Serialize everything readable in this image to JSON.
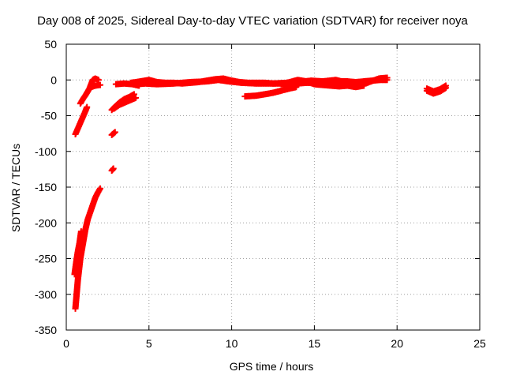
{
  "chart_data": {
    "type": "scatter",
    "title": "Day 008 of 2025, Sidereal Day-to-day VTEC variation (SDTVAR) for receiver noya",
    "xlabel": "GPS time / hours",
    "ylabel": "SDTVAR / TECUs",
    "xlim": [
      0,
      25
    ],
    "ylim": [
      -350,
      50
    ],
    "xticks": [
      "0",
      "5",
      "10",
      "15",
      "20",
      "25"
    ],
    "yticks": [
      "50",
      "0",
      "-50",
      "-100",
      "-150",
      "-200",
      "-250",
      "-300",
      "-350"
    ],
    "grid": true,
    "marker": "+",
    "color": "#ff0000",
    "series": [
      {
        "segments": [
          [
            [
              0.55,
              -320
            ],
            [
              0.7,
              -280
            ],
            [
              0.85,
              -250
            ],
            [
              1.0,
              -230
            ],
            [
              1.15,
              -210
            ],
            [
              1.3,
              -195
            ],
            [
              1.45,
              -185
            ],
            [
              1.6,
              -175
            ],
            [
              1.75,
              -165
            ],
            [
              1.9,
              -158
            ],
            [
              2.05,
              -152
            ]
          ],
          [
            [
              0.5,
              -272
            ],
            [
              0.6,
              -255
            ],
            [
              0.7,
              -240
            ],
            [
              0.8,
              -228
            ],
            [
              0.9,
              -212
            ]
          ],
          [
            [
              0.55,
              -76
            ],
            [
              0.7,
              -68
            ],
            [
              0.85,
              -60
            ],
            [
              1.0,
              -52
            ],
            [
              1.15,
              -44
            ],
            [
              1.25,
              -38
            ]
          ],
          [
            [
              0.85,
              -33
            ],
            [
              1.0,
              -27
            ],
            [
              1.2,
              -20
            ],
            [
              1.4,
              -12
            ],
            [
              1.5,
              -6
            ],
            [
              1.6,
              0
            ],
            [
              1.75,
              2
            ],
            [
              1.95,
              0
            ]
          ],
          [
            [
              1.5,
              -10
            ],
            [
              1.75,
              -8
            ],
            [
              2.05,
              -7
            ]
          ],
          [
            [
              2.75,
              -127
            ],
            [
              2.85,
              -124
            ]
          ],
          [
            [
              2.75,
              -77
            ],
            [
              2.95,
              -73
            ]
          ],
          [
            [
              2.75,
              -42
            ],
            [
              3.0,
              -36
            ],
            [
              3.25,
              -31
            ],
            [
              3.5,
              -27
            ],
            [
              3.8,
              -24
            ],
            [
              4.1,
              -20
            ]
          ],
          [
            [
              2.9,
              -40
            ],
            [
              3.2,
              -35
            ],
            [
              3.5,
              -32
            ],
            [
              3.9,
              -28
            ],
            [
              4.2,
              -25
            ]
          ],
          [
            [
              3.0,
              -6
            ],
            [
              3.5,
              -5
            ],
            [
              4.0,
              -6
            ],
            [
              4.4,
              -8
            ]
          ],
          [
            [
              3.9,
              -4
            ],
            [
              4.5,
              -2
            ],
            [
              5.0,
              0
            ],
            [
              5.5,
              -3
            ],
            [
              6.0,
              -4
            ],
            [
              6.5,
              -4
            ],
            [
              7.0,
              -5
            ],
            [
              7.5,
              -4
            ],
            [
              8.0,
              -3
            ],
            [
              8.5,
              -1
            ],
            [
              9.0,
              1
            ],
            [
              9.5,
              2
            ],
            [
              10.0,
              -1
            ],
            [
              10.5,
              -3
            ],
            [
              11.0,
              -4
            ],
            [
              11.5,
              -4
            ],
            [
              12.0,
              -4
            ],
            [
              12.5,
              -5
            ],
            [
              13.0,
              -5
            ],
            [
              13.5,
              -6
            ],
            [
              14.0,
              -5
            ],
            [
              14.5,
              -4
            ],
            [
              15.0,
              -4
            ],
            [
              15.5,
              -3
            ],
            [
              16.0,
              -3
            ],
            [
              16.5,
              -2
            ],
            [
              17.0,
              -2
            ],
            [
              17.5,
              -3
            ],
            [
              18.0,
              -2
            ],
            [
              18.5,
              -1
            ],
            [
              19.0,
              0
            ],
            [
              19.4,
              0
            ]
          ],
          [
            [
              4.2,
              -6
            ],
            [
              4.8,
              -5
            ],
            [
              5.5,
              -6
            ],
            [
              6.5,
              -5
            ],
            [
              7.5,
              -3
            ],
            [
              8.5,
              -2
            ],
            [
              9.2,
              0
            ],
            [
              9.8,
              -2
            ],
            [
              10.6,
              -4
            ],
            [
              11.5,
              -5
            ],
            [
              12.5,
              -5
            ],
            [
              13.3,
              -4
            ],
            [
              14.0,
              -3
            ],
            [
              14.8,
              -1
            ],
            [
              15.5,
              -2
            ],
            [
              16.3,
              0
            ],
            [
              16.8,
              -3
            ],
            [
              17.5,
              -5
            ],
            [
              18.2,
              -4
            ],
            [
              18.9,
              2
            ],
            [
              19.4,
              3
            ]
          ],
          [
            [
              13.0,
              -6
            ],
            [
              13.5,
              -3
            ],
            [
              14.0,
              0
            ],
            [
              14.5,
              -2
            ],
            [
              15.0,
              -6
            ],
            [
              15.5,
              -7
            ],
            [
              16.0,
              -8
            ],
            [
              16.5,
              -9
            ],
            [
              17.0,
              -8
            ],
            [
              17.5,
              -10
            ],
            [
              18.0,
              -8
            ]
          ],
          [
            [
              10.8,
              -23
            ],
            [
              11.5,
              -22
            ],
            [
              12.0,
              -20
            ],
            [
              12.5,
              -18
            ],
            [
              13.0,
              -15
            ],
            [
              13.5,
              -12
            ],
            [
              13.9,
              -10
            ]
          ],
          [
            [
              21.8,
              -12
            ],
            [
              22.2,
              -16
            ],
            [
              22.6,
              -13
            ],
            [
              22.95,
              -8
            ]
          ],
          [
            [
              21.8,
              -15
            ],
            [
              22.2,
              -19
            ],
            [
              22.6,
              -16
            ],
            [
              22.95,
              -11
            ]
          ]
        ]
      }
    ]
  }
}
